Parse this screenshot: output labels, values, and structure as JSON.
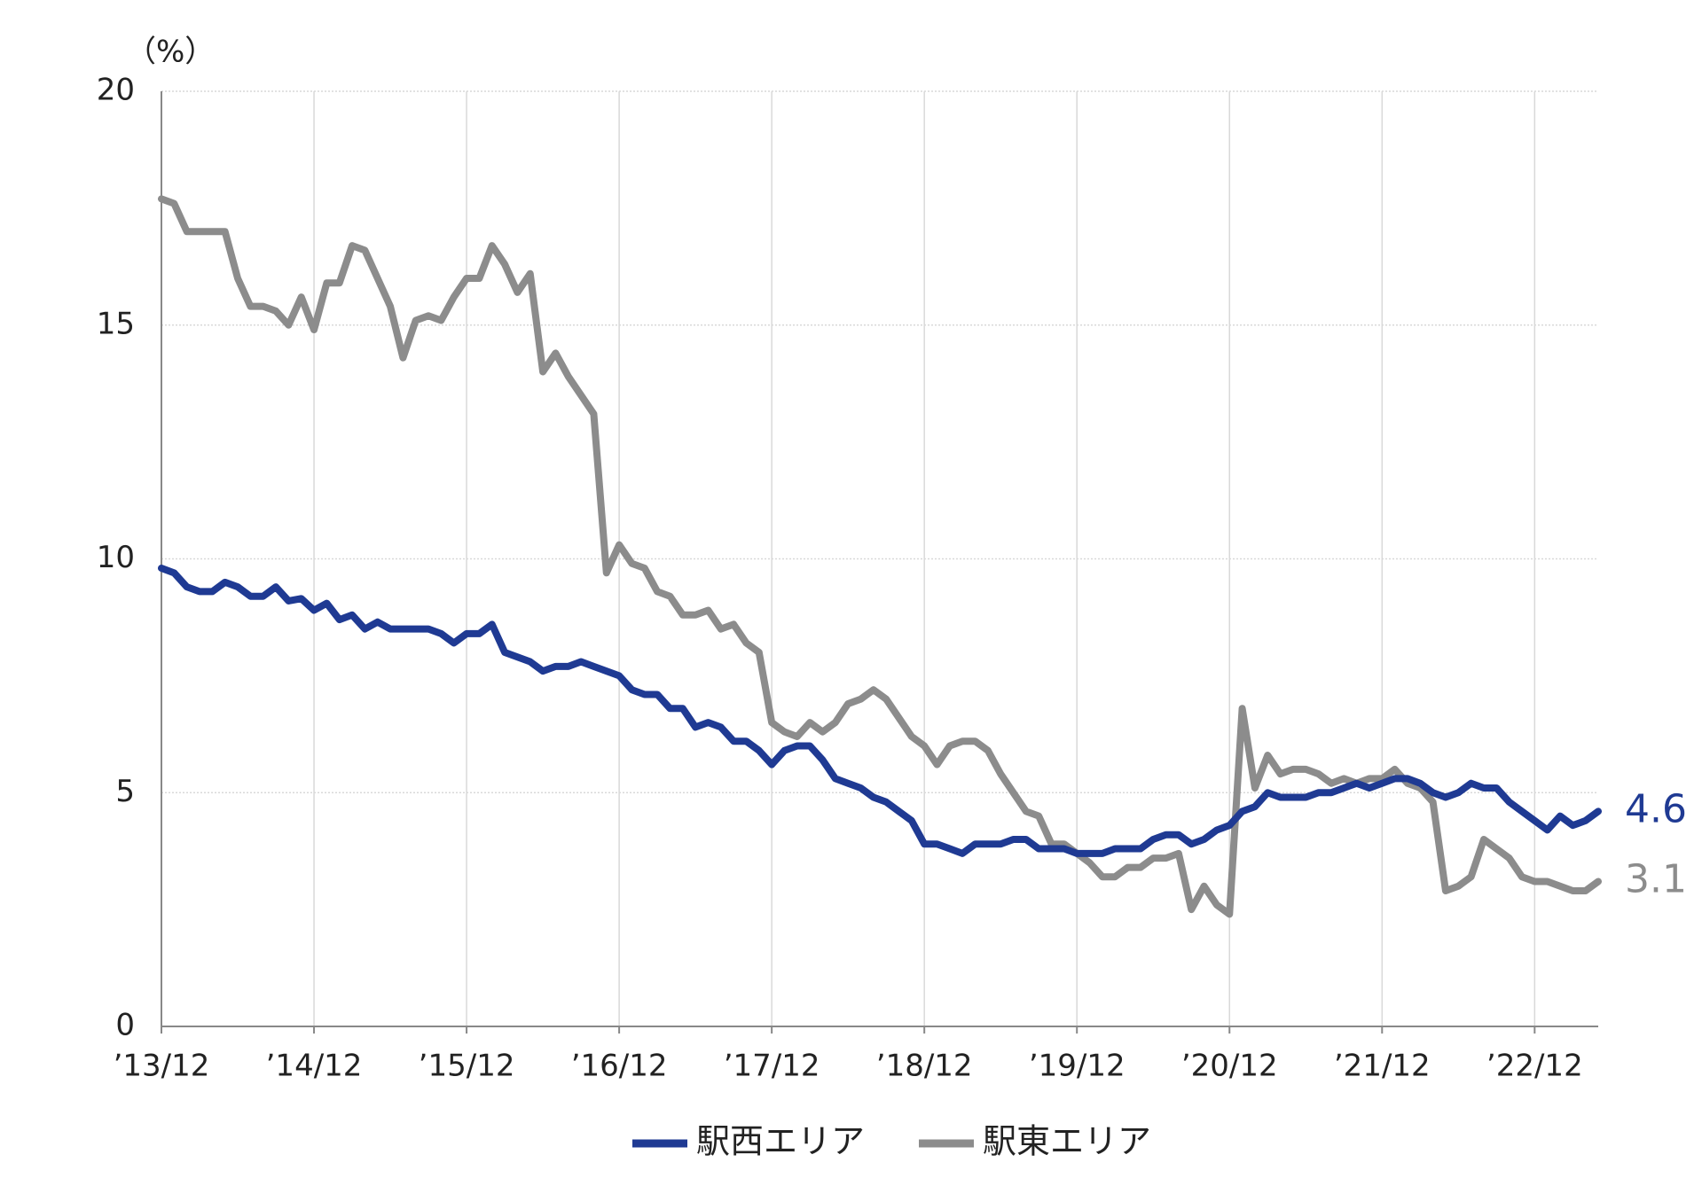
{
  "chart_data": {
    "type": "line",
    "y_label": "（%）",
    "categories": [
      "’13/12",
      null,
      null,
      null,
      null,
      null,
      null,
      null,
      null,
      null,
      null,
      null,
      "’14/12",
      null,
      null,
      null,
      null,
      null,
      null,
      null,
      null,
      null,
      null,
      null,
      "’15/12",
      null,
      null,
      null,
      null,
      null,
      null,
      null,
      null,
      null,
      null,
      null,
      "’16/12",
      null,
      null,
      null,
      null,
      null,
      null,
      null,
      null,
      null,
      null,
      null,
      "’17/12",
      null,
      null,
      null,
      null,
      null,
      null,
      null,
      null,
      null,
      null,
      null,
      "’18/12",
      null,
      null,
      null,
      null,
      null,
      null,
      null,
      null,
      null,
      null,
      null,
      "’19/12",
      null,
      null,
      null,
      null,
      null,
      null,
      null,
      null,
      null,
      null,
      null,
      "’20/12",
      null,
      null,
      null,
      null,
      null,
      null,
      null,
      null,
      null,
      null,
      null,
      "’21/12",
      null,
      null,
      null,
      null,
      null,
      null,
      null,
      null,
      null,
      null,
      null,
      "’22/12",
      null,
      null,
      null,
      null,
      null
    ],
    "series": [
      {
        "name": "駅西エリア",
        "color": "#1f3a93",
        "values": [
          9.8,
          9.7,
          9.4,
          9.3,
          9.3,
          9.5,
          9.4,
          9.2,
          9.2,
          9.4,
          9.1,
          9.15,
          8.9,
          9.05,
          8.7,
          8.8,
          8.5,
          8.65,
          8.5,
          8.5,
          8.5,
          8.5,
          8.4,
          8.2,
          8.4,
          8.4,
          8.6,
          8.0,
          7.9,
          7.8,
          7.6,
          7.7,
          7.7,
          7.8,
          7.7,
          7.6,
          7.5,
          7.2,
          7.1,
          7.1,
          6.8,
          6.8,
          6.4,
          6.5,
          6.4,
          6.1,
          6.1,
          5.9,
          5.6,
          5.9,
          6.0,
          6.0,
          5.7,
          5.3,
          5.2,
          5.1,
          4.9,
          4.8,
          4.6,
          4.4,
          3.9,
          3.9,
          3.8,
          3.7,
          3.9,
          3.9,
          3.9,
          4.0,
          4.0,
          3.8,
          3.8,
          3.8,
          3.7,
          3.7,
          3.7,
          3.8,
          3.8,
          3.8,
          4.0,
          4.1,
          4.1,
          3.9,
          4.0,
          4.2,
          4.3,
          4.6,
          4.7,
          5.0,
          4.9,
          4.9,
          4.9,
          5.0,
          5.0,
          5.1,
          5.2,
          5.1,
          5.2,
          5.3,
          5.3,
          5.2,
          5.0,
          4.9,
          5.0,
          5.2,
          5.1,
          5.1,
          4.8,
          4.6,
          4.4,
          4.2,
          4.5,
          4.3,
          4.4,
          4.6
        ]
      },
      {
        "name": "駅東エリア",
        "color": "#8c8c8c",
        "values": [
          17.7,
          17.6,
          17.0,
          17.0,
          17.0,
          17.0,
          16.0,
          15.4,
          15.4,
          15.3,
          15.0,
          15.6,
          14.9,
          15.9,
          15.9,
          16.7,
          16.6,
          16.0,
          15.4,
          14.3,
          15.1,
          15.2,
          15.1,
          15.6,
          16.0,
          16.0,
          16.7,
          16.3,
          15.7,
          16.1,
          14.0,
          14.4,
          13.9,
          13.5,
          13.1,
          9.7,
          10.3,
          9.9,
          9.8,
          9.3,
          9.2,
          8.8,
          8.8,
          8.9,
          8.5,
          8.6,
          8.2,
          8.0,
          6.5,
          6.3,
          6.2,
          6.5,
          6.3,
          6.5,
          6.9,
          7.0,
          7.2,
          7.0,
          6.6,
          6.2,
          6.0,
          5.6,
          6.0,
          6.1,
          6.1,
          5.9,
          5.4,
          5.0,
          4.6,
          4.5,
          3.9,
          3.9,
          3.7,
          3.5,
          3.2,
          3.2,
          3.4,
          3.4,
          3.6,
          3.6,
          3.7,
          2.5,
          3.0,
          2.6,
          2.4,
          6.8,
          5.1,
          5.8,
          5.4,
          5.5,
          5.5,
          5.4,
          5.2,
          5.3,
          5.2,
          5.3,
          5.3,
          5.5,
          5.2,
          5.1,
          4.8,
          2.9,
          3.0,
          3.2,
          4.0,
          3.8,
          3.6,
          3.2,
          3.1,
          3.1,
          3.0,
          2.9,
          2.9,
          3.1
        ]
      }
    ],
    "ylim": [
      0,
      20
    ],
    "yticks": [
      0,
      5,
      10,
      15,
      20
    ],
    "grid": true,
    "legend": "bottom"
  }
}
